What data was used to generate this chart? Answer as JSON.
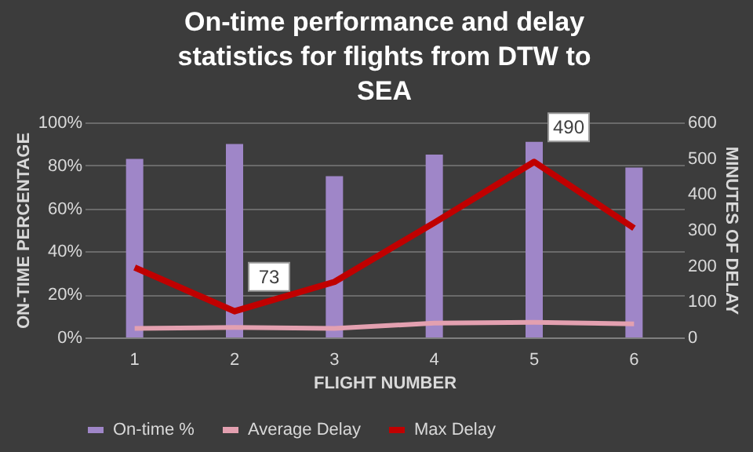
{
  "chart_data": {
    "type": "bar",
    "title": "On-time performance and delay statistics for flights from DTW to SEA",
    "xlabel": "FLIGHT NUMBER",
    "ylabel": "ON-TIME PERCENTAGE",
    "y2label": "MINUTES OF DELAY",
    "categories": [
      "1",
      "2",
      "3",
      "4",
      "5",
      "6"
    ],
    "series": [
      {
        "name": "On-time %",
        "color": "#9f86c8",
        "values": [
          83,
          90,
          75,
          85,
          91,
          79
        ]
      },
      {
        "name": "Average Delay",
        "type": "line",
        "axis": "y2",
        "color": "#e3a0b0",
        "values": [
          25,
          28,
          25,
          40,
          42,
          38
        ]
      },
      {
        "name": "Max Delay",
        "type": "line",
        "axis": "y2",
        "color": "#c00000",
        "values": [
          195,
          73,
          155,
          320,
          490,
          305
        ],
        "value_labels": [
          null,
          "73",
          null,
          null,
          "490",
          null
        ]
      }
    ],
    "ylim": [
      0,
      100
    ],
    "yticks": [
      {
        "value": 0,
        "label": "0%"
      },
      {
        "value": 20,
        "label": "20%"
      },
      {
        "value": 40,
        "label": "40%"
      },
      {
        "value": 60,
        "label": "60%"
      },
      {
        "value": 80,
        "label": "80%"
      },
      {
        "value": 100,
        "label": "100%"
      }
    ],
    "y2lim": [
      0,
      600
    ],
    "y2ticks": [
      0,
      100,
      200,
      300,
      400,
      500,
      600
    ],
    "grid": "y",
    "legend": "bottom",
    "marker": "none",
    "line_style": "solid"
  }
}
